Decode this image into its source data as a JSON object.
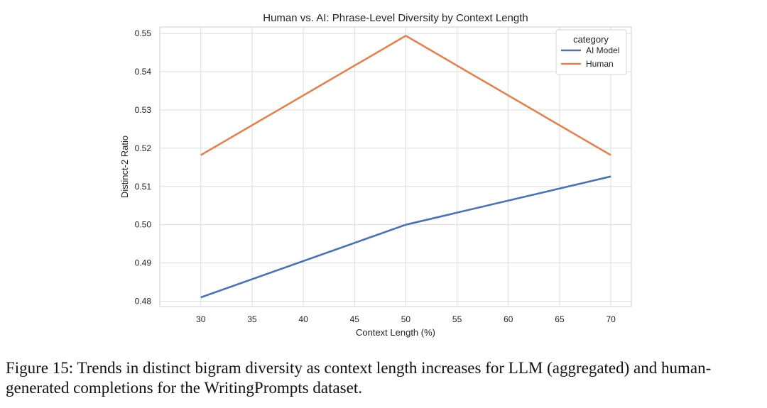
{
  "chart_data": {
    "type": "line",
    "title": "Human vs. AI: Phrase-Level Diversity by Context Length",
    "xlabel": "Context Length (%)",
    "ylabel": "Distinct-2 Ratio",
    "x": [
      30,
      50,
      70
    ],
    "xlim": [
      26,
      72
    ],
    "ylim": [
      0.4786,
      0.5517
    ],
    "xticks": [
      30,
      35,
      40,
      45,
      50,
      55,
      60,
      65,
      70
    ],
    "yticks": [
      0.48,
      0.49,
      0.5,
      0.51,
      0.52,
      0.53,
      0.54,
      0.55
    ],
    "ytick_labels": [
      "0.48",
      "0.49",
      "0.50",
      "0.51",
      "0.52",
      "0.53",
      "0.54",
      "0.55"
    ],
    "grid": true,
    "legend": {
      "title": "category",
      "placement": "top-right"
    },
    "series": [
      {
        "name": "AI Model",
        "color": "#4c72b0",
        "values": [
          0.481,
          0.5,
          0.5126
        ]
      },
      {
        "name": "Human",
        "color": "#dd8452",
        "values": [
          0.5182,
          0.5494,
          0.5182
        ]
      }
    ]
  },
  "caption": "Figure 15: Trends in distinct bigram diversity as context length increases for LLM (aggregated) and human-generated completions for the WritingPrompts dataset."
}
